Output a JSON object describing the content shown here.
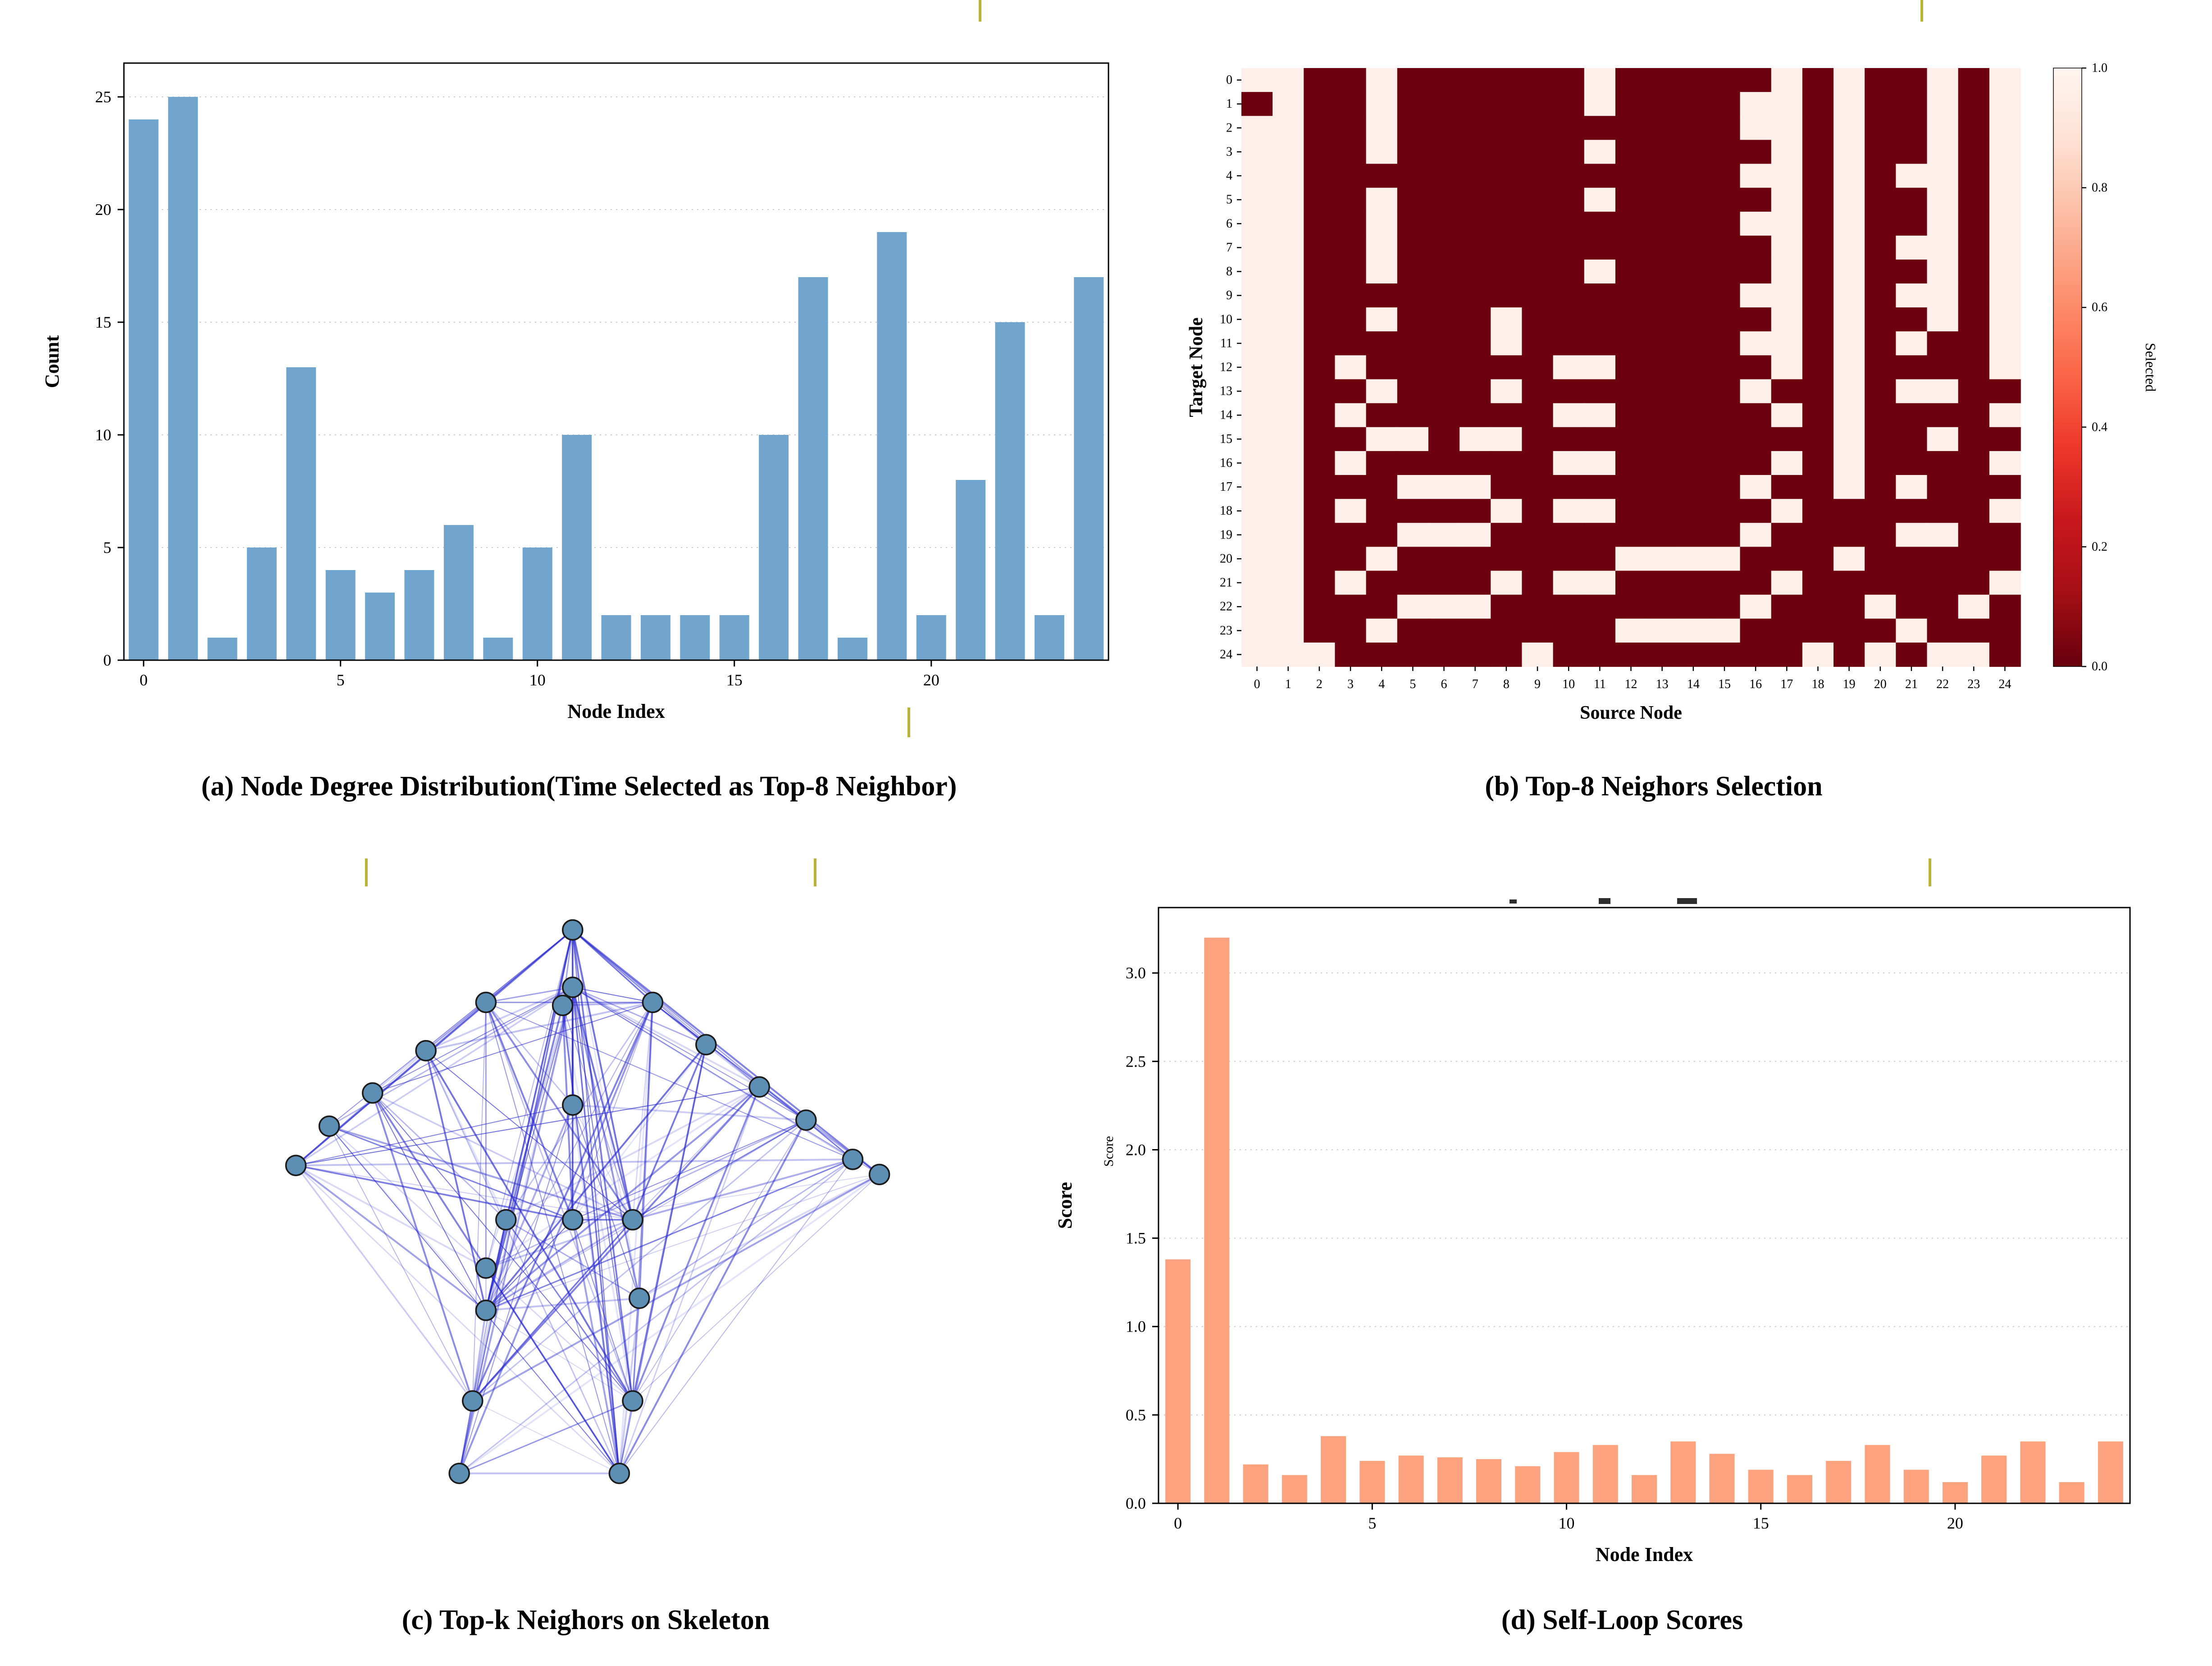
{
  "figure": {
    "background": "#ffffff",
    "artifact_color": "#b9b437",
    "captions": {
      "a": "(a) Node Degree Distribution(Time Selected as Top-8 Neighbor)",
      "b": "(b) Top-8 Neighors Selection",
      "c": "(c) Top-k Neighors on Skeleton",
      "d": "(d) Self-Loop Scores"
    }
  },
  "chart_data": [
    {
      "id": "degree-distribution",
      "type": "bar",
      "xlabel": "Node Index",
      "ylabel": "Count",
      "categories": [
        0,
        1,
        2,
        3,
        4,
        5,
        6,
        7,
        8,
        9,
        10,
        11,
        12,
        13,
        14,
        15,
        16,
        17,
        18,
        19,
        20,
        21,
        22,
        23,
        24
      ],
      "values": [
        24,
        25,
        1,
        5,
        13,
        4,
        3,
        4,
        6,
        1,
        5,
        10,
        2,
        2,
        2,
        2,
        10,
        17,
        1,
        19,
        2,
        8,
        15,
        2,
        17
      ],
      "xticks": [
        0,
        5,
        10,
        15,
        20
      ],
      "yticks": [
        0,
        5,
        10,
        15,
        20,
        25
      ],
      "ytick_format": "int",
      "ylim": [
        0,
        26.5
      ],
      "grid": true,
      "bar_color": "#72a5cd"
    },
    {
      "id": "topk-selection",
      "type": "heatmap",
      "xlabel": "Source Node",
      "ylabel": "Target Node",
      "colorbar_label": "Selected",
      "colorbar_ticks": [
        1.0,
        0.8,
        0.6,
        0.4,
        0.2,
        0.0
      ],
      "colorbar_gradient": [
        "#fff5f0",
        "#fee0d2",
        "#fcbba1",
        "#fc9272",
        "#fb6a4a",
        "#ef3b2c",
        "#cb181d",
        "#a50f15",
        "#67000d"
      ],
      "color_low": "#6d000f",
      "color_high": "#fdf0ea",
      "xticks": [
        0,
        1,
        2,
        3,
        4,
        5,
        6,
        7,
        8,
        9,
        10,
        11,
        12,
        13,
        14,
        15,
        16,
        17,
        18,
        19,
        20,
        21,
        22,
        23,
        24
      ],
      "yticks": [
        0,
        1,
        2,
        3,
        4,
        5,
        6,
        7,
        8,
        9,
        10,
        11,
        12,
        13,
        14,
        15,
        16,
        17,
        18,
        19,
        20,
        21,
        22,
        23,
        24
      ],
      "matrix": [
        [
          1,
          1,
          0,
          0,
          1,
          0,
          0,
          0,
          0,
          0,
          0,
          1,
          0,
          0,
          0,
          0,
          0,
          1,
          0,
          1,
          0,
          0,
          1,
          0,
          1
        ],
        [
          0,
          1,
          0,
          0,
          1,
          0,
          0,
          0,
          0,
          0,
          0,
          1,
          0,
          0,
          0,
          0,
          1,
          1,
          0,
          1,
          0,
          0,
          1,
          0,
          1
        ],
        [
          1,
          1,
          0,
          0,
          1,
          0,
          0,
          0,
          0,
          0,
          0,
          0,
          0,
          0,
          0,
          0,
          1,
          1,
          0,
          1,
          0,
          0,
          1,
          0,
          1
        ],
        [
          1,
          1,
          0,
          0,
          1,
          0,
          0,
          0,
          0,
          0,
          0,
          1,
          0,
          0,
          0,
          0,
          0,
          1,
          0,
          1,
          0,
          0,
          1,
          0,
          1
        ],
        [
          1,
          1,
          0,
          0,
          0,
          0,
          0,
          0,
          0,
          0,
          0,
          0,
          0,
          0,
          0,
          0,
          1,
          1,
          0,
          1,
          0,
          1,
          1,
          0,
          1
        ],
        [
          1,
          1,
          0,
          0,
          1,
          0,
          0,
          0,
          0,
          0,
          0,
          1,
          0,
          0,
          0,
          0,
          0,
          1,
          0,
          1,
          0,
          0,
          1,
          0,
          1
        ],
        [
          1,
          1,
          0,
          0,
          1,
          0,
          0,
          0,
          0,
          0,
          0,
          0,
          0,
          0,
          0,
          0,
          1,
          1,
          0,
          1,
          0,
          0,
          1,
          0,
          1
        ],
        [
          1,
          1,
          0,
          0,
          1,
          0,
          0,
          0,
          0,
          0,
          0,
          0,
          0,
          0,
          0,
          0,
          0,
          1,
          0,
          1,
          0,
          1,
          1,
          0,
          1
        ],
        [
          1,
          1,
          0,
          0,
          1,
          0,
          0,
          0,
          0,
          0,
          0,
          1,
          0,
          0,
          0,
          0,
          0,
          1,
          0,
          1,
          0,
          0,
          1,
          0,
          1
        ],
        [
          1,
          1,
          0,
          0,
          0,
          0,
          0,
          0,
          0,
          0,
          0,
          0,
          0,
          0,
          0,
          0,
          1,
          1,
          0,
          1,
          0,
          1,
          1,
          0,
          1
        ],
        [
          1,
          1,
          0,
          0,
          1,
          0,
          0,
          0,
          1,
          0,
          0,
          0,
          0,
          0,
          0,
          0,
          0,
          1,
          0,
          1,
          0,
          0,
          1,
          0,
          1
        ],
        [
          1,
          1,
          0,
          0,
          0,
          0,
          0,
          0,
          1,
          0,
          0,
          0,
          0,
          0,
          0,
          0,
          1,
          1,
          0,
          1,
          0,
          1,
          0,
          0,
          1
        ],
        [
          1,
          1,
          0,
          1,
          0,
          0,
          0,
          0,
          0,
          0,
          1,
          1,
          0,
          0,
          0,
          0,
          0,
          1,
          0,
          1,
          0,
          0,
          0,
          0,
          1
        ],
        [
          1,
          1,
          0,
          0,
          1,
          0,
          0,
          0,
          1,
          0,
          0,
          0,
          0,
          0,
          0,
          0,
          1,
          0,
          0,
          1,
          0,
          1,
          1,
          0,
          0
        ],
        [
          1,
          1,
          0,
          1,
          0,
          0,
          0,
          0,
          0,
          0,
          1,
          1,
          0,
          0,
          0,
          0,
          0,
          1,
          0,
          1,
          0,
          0,
          0,
          0,
          1
        ],
        [
          1,
          1,
          0,
          0,
          1,
          1,
          0,
          1,
          1,
          0,
          0,
          0,
          0,
          0,
          0,
          0,
          0,
          0,
          0,
          1,
          0,
          0,
          1,
          0,
          0
        ],
        [
          1,
          1,
          0,
          1,
          0,
          0,
          0,
          0,
          0,
          0,
          1,
          1,
          0,
          0,
          0,
          0,
          0,
          1,
          0,
          1,
          0,
          0,
          0,
          0,
          1
        ],
        [
          1,
          1,
          0,
          0,
          0,
          1,
          1,
          1,
          0,
          0,
          0,
          0,
          0,
          0,
          0,
          0,
          1,
          0,
          0,
          1,
          0,
          1,
          0,
          0,
          0
        ],
        [
          1,
          1,
          0,
          1,
          0,
          0,
          0,
          0,
          1,
          0,
          1,
          1,
          0,
          0,
          0,
          0,
          0,
          1,
          0,
          0,
          0,
          0,
          0,
          0,
          1
        ],
        [
          1,
          1,
          0,
          0,
          0,
          1,
          1,
          1,
          0,
          0,
          0,
          0,
          0,
          0,
          0,
          0,
          1,
          0,
          0,
          0,
          0,
          1,
          1,
          0,
          0
        ],
        [
          1,
          1,
          0,
          0,
          1,
          0,
          0,
          0,
          0,
          0,
          0,
          0,
          1,
          1,
          1,
          1,
          0,
          0,
          0,
          1,
          0,
          0,
          0,
          0,
          0
        ],
        [
          1,
          1,
          0,
          1,
          0,
          0,
          0,
          0,
          1,
          0,
          1,
          1,
          0,
          0,
          0,
          0,
          0,
          1,
          0,
          0,
          0,
          0,
          0,
          0,
          1
        ],
        [
          1,
          1,
          0,
          0,
          0,
          1,
          1,
          1,
          0,
          0,
          0,
          0,
          0,
          0,
          0,
          0,
          1,
          0,
          0,
          0,
          1,
          0,
          0,
          1,
          0
        ],
        [
          1,
          1,
          0,
          0,
          1,
          0,
          0,
          0,
          0,
          0,
          0,
          0,
          1,
          1,
          1,
          1,
          0,
          0,
          0,
          0,
          0,
          1,
          0,
          0,
          0
        ],
        [
          1,
          1,
          1,
          0,
          0,
          0,
          0,
          0,
          0,
          1,
          0,
          0,
          0,
          0,
          0,
          0,
          0,
          0,
          1,
          0,
          1,
          0,
          1,
          1,
          0
        ]
      ]
    },
    {
      "id": "skeleton-graph",
      "type": "scatter",
      "edge_color": "#2626cf",
      "node_color": "#5d8fb5",
      "node_edge_color": "#1c1c1c",
      "edges_source": "topk-selection",
      "nodes": [
        [
          0.46,
          0.04
        ],
        [
          0.46,
          0.135
        ],
        [
          0.445,
          0.165
        ],
        [
          0.33,
          0.16
        ],
        [
          0.58,
          0.16
        ],
        [
          0.24,
          0.24
        ],
        [
          0.66,
          0.23
        ],
        [
          0.16,
          0.31
        ],
        [
          0.74,
          0.3
        ],
        [
          0.095,
          0.365
        ],
        [
          0.81,
          0.355
        ],
        [
          0.045,
          0.43
        ],
        [
          0.88,
          0.42
        ],
        [
          0.92,
          0.445
        ],
        [
          0.46,
          0.33
        ],
        [
          0.36,
          0.52
        ],
        [
          0.46,
          0.52
        ],
        [
          0.55,
          0.52
        ],
        [
          0.33,
          0.6
        ],
        [
          0.33,
          0.67
        ],
        [
          0.56,
          0.65
        ],
        [
          0.31,
          0.82
        ],
        [
          0.55,
          0.82
        ],
        [
          0.29,
          0.94
        ],
        [
          0.53,
          0.94
        ]
      ]
    },
    {
      "id": "self-loop-scores",
      "type": "bar",
      "xlabel": "Node Index",
      "ylabel": "Score",
      "ylabel_inner": "Score",
      "categories": [
        0,
        1,
        2,
        3,
        4,
        5,
        6,
        7,
        8,
        9,
        10,
        11,
        12,
        13,
        14,
        15,
        16,
        17,
        18,
        19,
        20,
        21,
        22,
        23,
        24
      ],
      "values": [
        1.38,
        3.2,
        0.22,
        0.16,
        0.38,
        0.24,
        0.27,
        0.26,
        0.25,
        0.21,
        0.29,
        0.33,
        0.16,
        0.35,
        0.28,
        0.19,
        0.16,
        0.24,
        0.33,
        0.19,
        0.12,
        0.27,
        0.35,
        0.12,
        0.35
      ],
      "xticks": [
        0,
        5,
        10,
        15,
        20
      ],
      "yticks": [
        0,
        0.5,
        1,
        1.5,
        2,
        2.5,
        3
      ],
      "ytick_format": "1dp",
      "ylim": [
        0,
        3.37
      ],
      "grid": true,
      "bar_color": "#fca27e"
    }
  ]
}
